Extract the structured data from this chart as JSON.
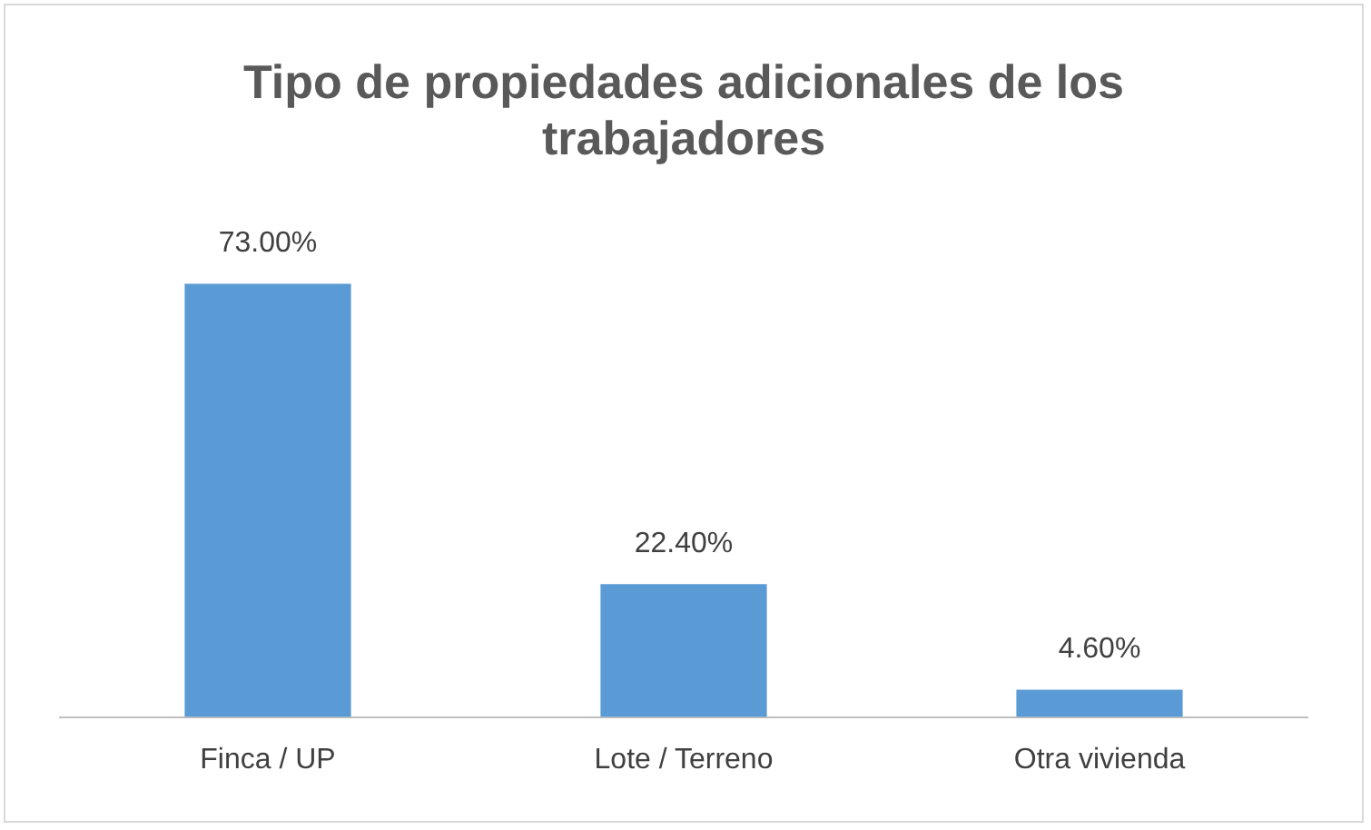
{
  "chart_data": {
    "type": "bar",
    "title": "Tipo de propiedades adicionales de los trabajadores",
    "categories": [
      "Finca / UP",
      "Lote / Terreno",
      "Otra vivienda"
    ],
    "values": [
      73,
      22.4,
      4.6
    ],
    "value_labels": [
      "73.00%",
      "22.40%",
      "4.60%"
    ],
    "color": "#5b9bd5",
    "grid": false,
    "legend": false
  }
}
